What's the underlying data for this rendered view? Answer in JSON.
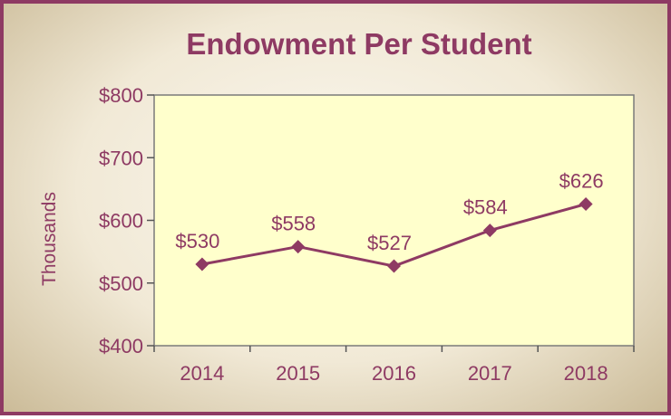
{
  "chart_data": {
    "type": "line",
    "title": "Endowment Per Student",
    "ylabel": "Thousands",
    "xlabel": "",
    "categories": [
      "2014",
      "2015",
      "2016",
      "2017",
      "2018"
    ],
    "series": [
      {
        "values": [
          530,
          558,
          527,
          584,
          626
        ]
      }
    ],
    "data_labels": [
      "$530",
      "$558",
      "$527",
      "$584",
      "$626"
    ],
    "yticks": [
      400,
      500,
      600,
      700,
      800
    ],
    "ytick_labels": [
      "$400",
      "$500",
      "$600",
      "$700",
      "$800"
    ],
    "ylim": [
      400,
      800
    ],
    "grid": false,
    "legend": "none",
    "colors": {
      "line": "#8e3a63",
      "plot_bg": "#ffffcc",
      "text": "#8e3a63"
    }
  }
}
